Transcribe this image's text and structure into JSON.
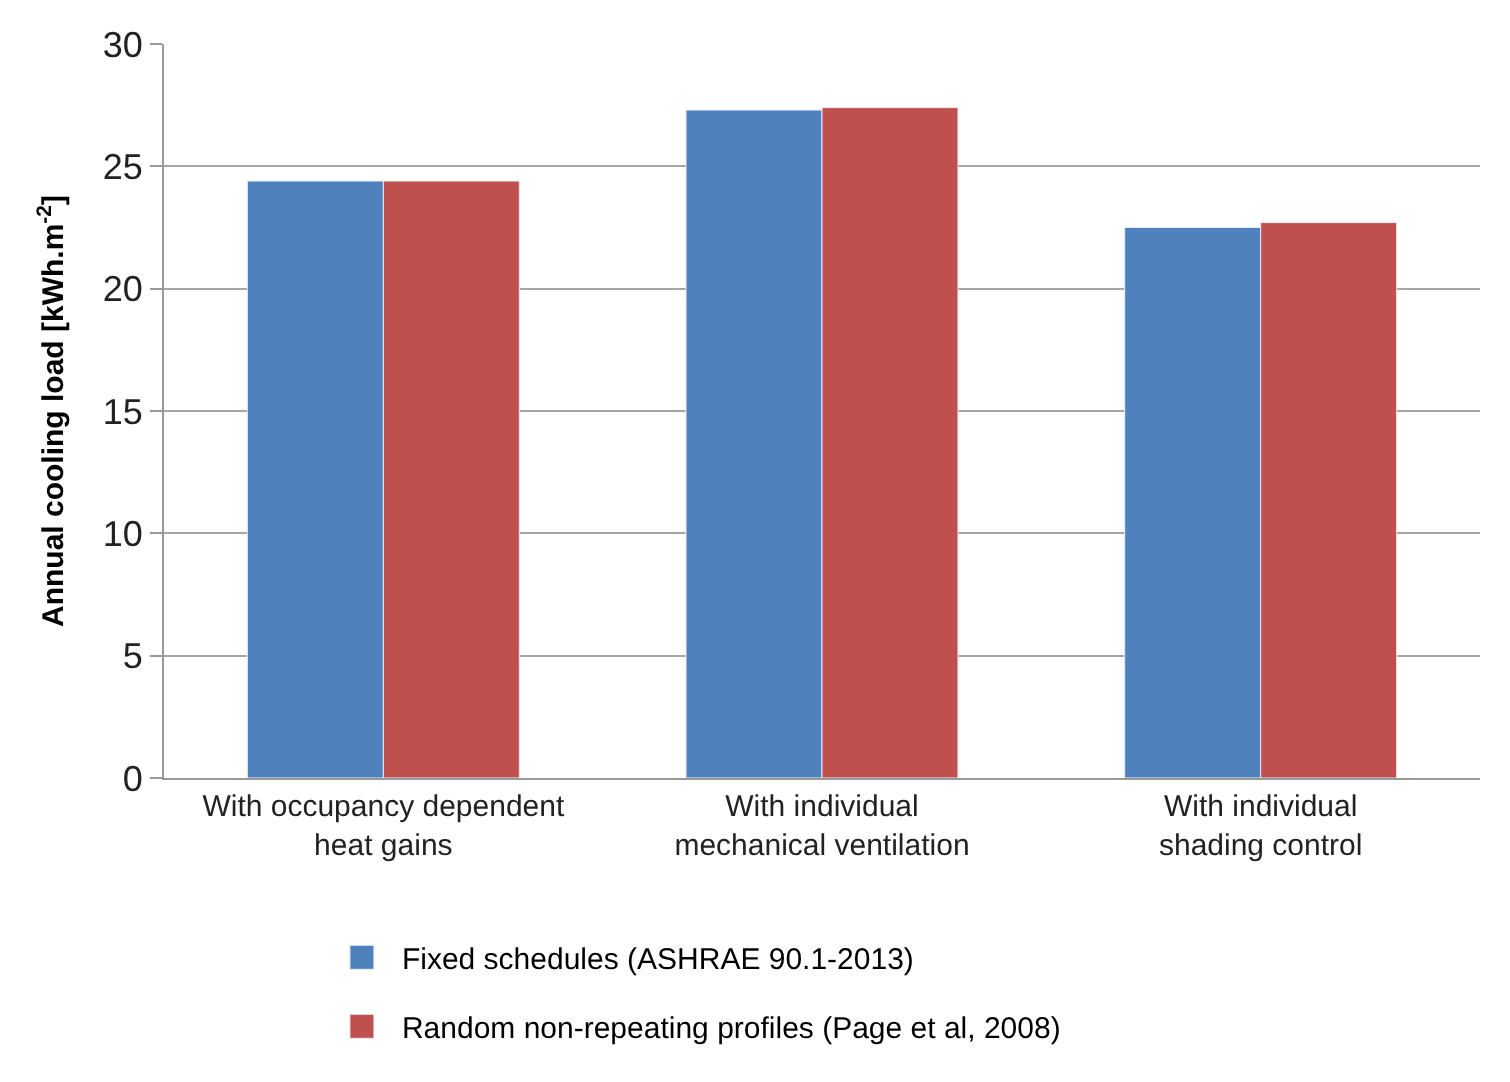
{
  "chart_data": {
    "type": "bar",
    "ylabel": "Annual cooling load [kWh.m$^{-2}$]",
    "categories": [
      "With occupancy dependent\nheat gains",
      "With individual\nmechanical ventilation",
      "With individual\nshading control"
    ],
    "series": [
      {
        "name": "Fixed schedules (ASHRAE 90.1-2013)",
        "color": "#4f81bd",
        "values": [
          24.4,
          27.3,
          22.5
        ]
      },
      {
        "name": "Random non-repeating profiles (Page et al, 2008)",
        "color": "#c0504d",
        "values": [
          24.4,
          27.4,
          22.7
        ]
      }
    ],
    "ylim": [
      0,
      30
    ],
    "yticks": [
      0,
      5,
      10,
      15,
      20,
      25,
      30
    ],
    "grid": "y",
    "legend": "bottom"
  }
}
